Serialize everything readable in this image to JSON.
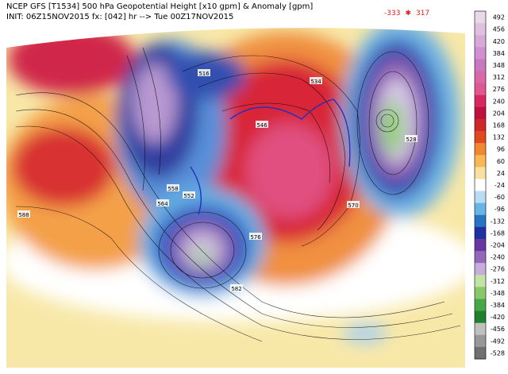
{
  "header": {
    "title": "NCEP GFS [T1534] 500 hPa Geopotential Height [x10 gpm] & Anomaly [gpm]",
    "init": "INIT: 06Z15NOV2015 fx: [042] hr --> Tue 00Z17NOV2015"
  },
  "extremes": {
    "min": "-333",
    "symbol": "✱",
    "max": "317"
  },
  "colorbar": {
    "labels": [
      492,
      456,
      420,
      384,
      348,
      312,
      276,
      240,
      204,
      168,
      132,
      96,
      60,
      24,
      -24,
      -60,
      -96,
      -132,
      -168,
      -204,
      -240,
      -276,
      -312,
      -348,
      -384,
      -420,
      -456,
      -492,
      -528
    ],
    "colors": [
      "#e8d8e8",
      "#e0c0e0",
      "#d8a8d8",
      "#d090d0",
      "#c878c0",
      "#d868a8",
      "#e05890",
      "#d82860",
      "#c01040",
      "#d02828",
      "#e04820",
      "#f08830",
      "#f8b858",
      "#f8e0a0",
      "#ffffff",
      "#b8dcf4",
      "#68b4e4",
      "#2874c4",
      "#2030a0",
      "#6838a0",
      "#9468b8",
      "#c8acdc",
      "#c0e4a4",
      "#88c868",
      "#48a848",
      "#208030",
      "#c0c0c0",
      "#989898",
      "#707070"
    ]
  },
  "contour_labels": [
    "516",
    "546",
    "528",
    "534",
    "552",
    "558",
    "564",
    "570",
    "576",
    "582",
    "588"
  ]
}
